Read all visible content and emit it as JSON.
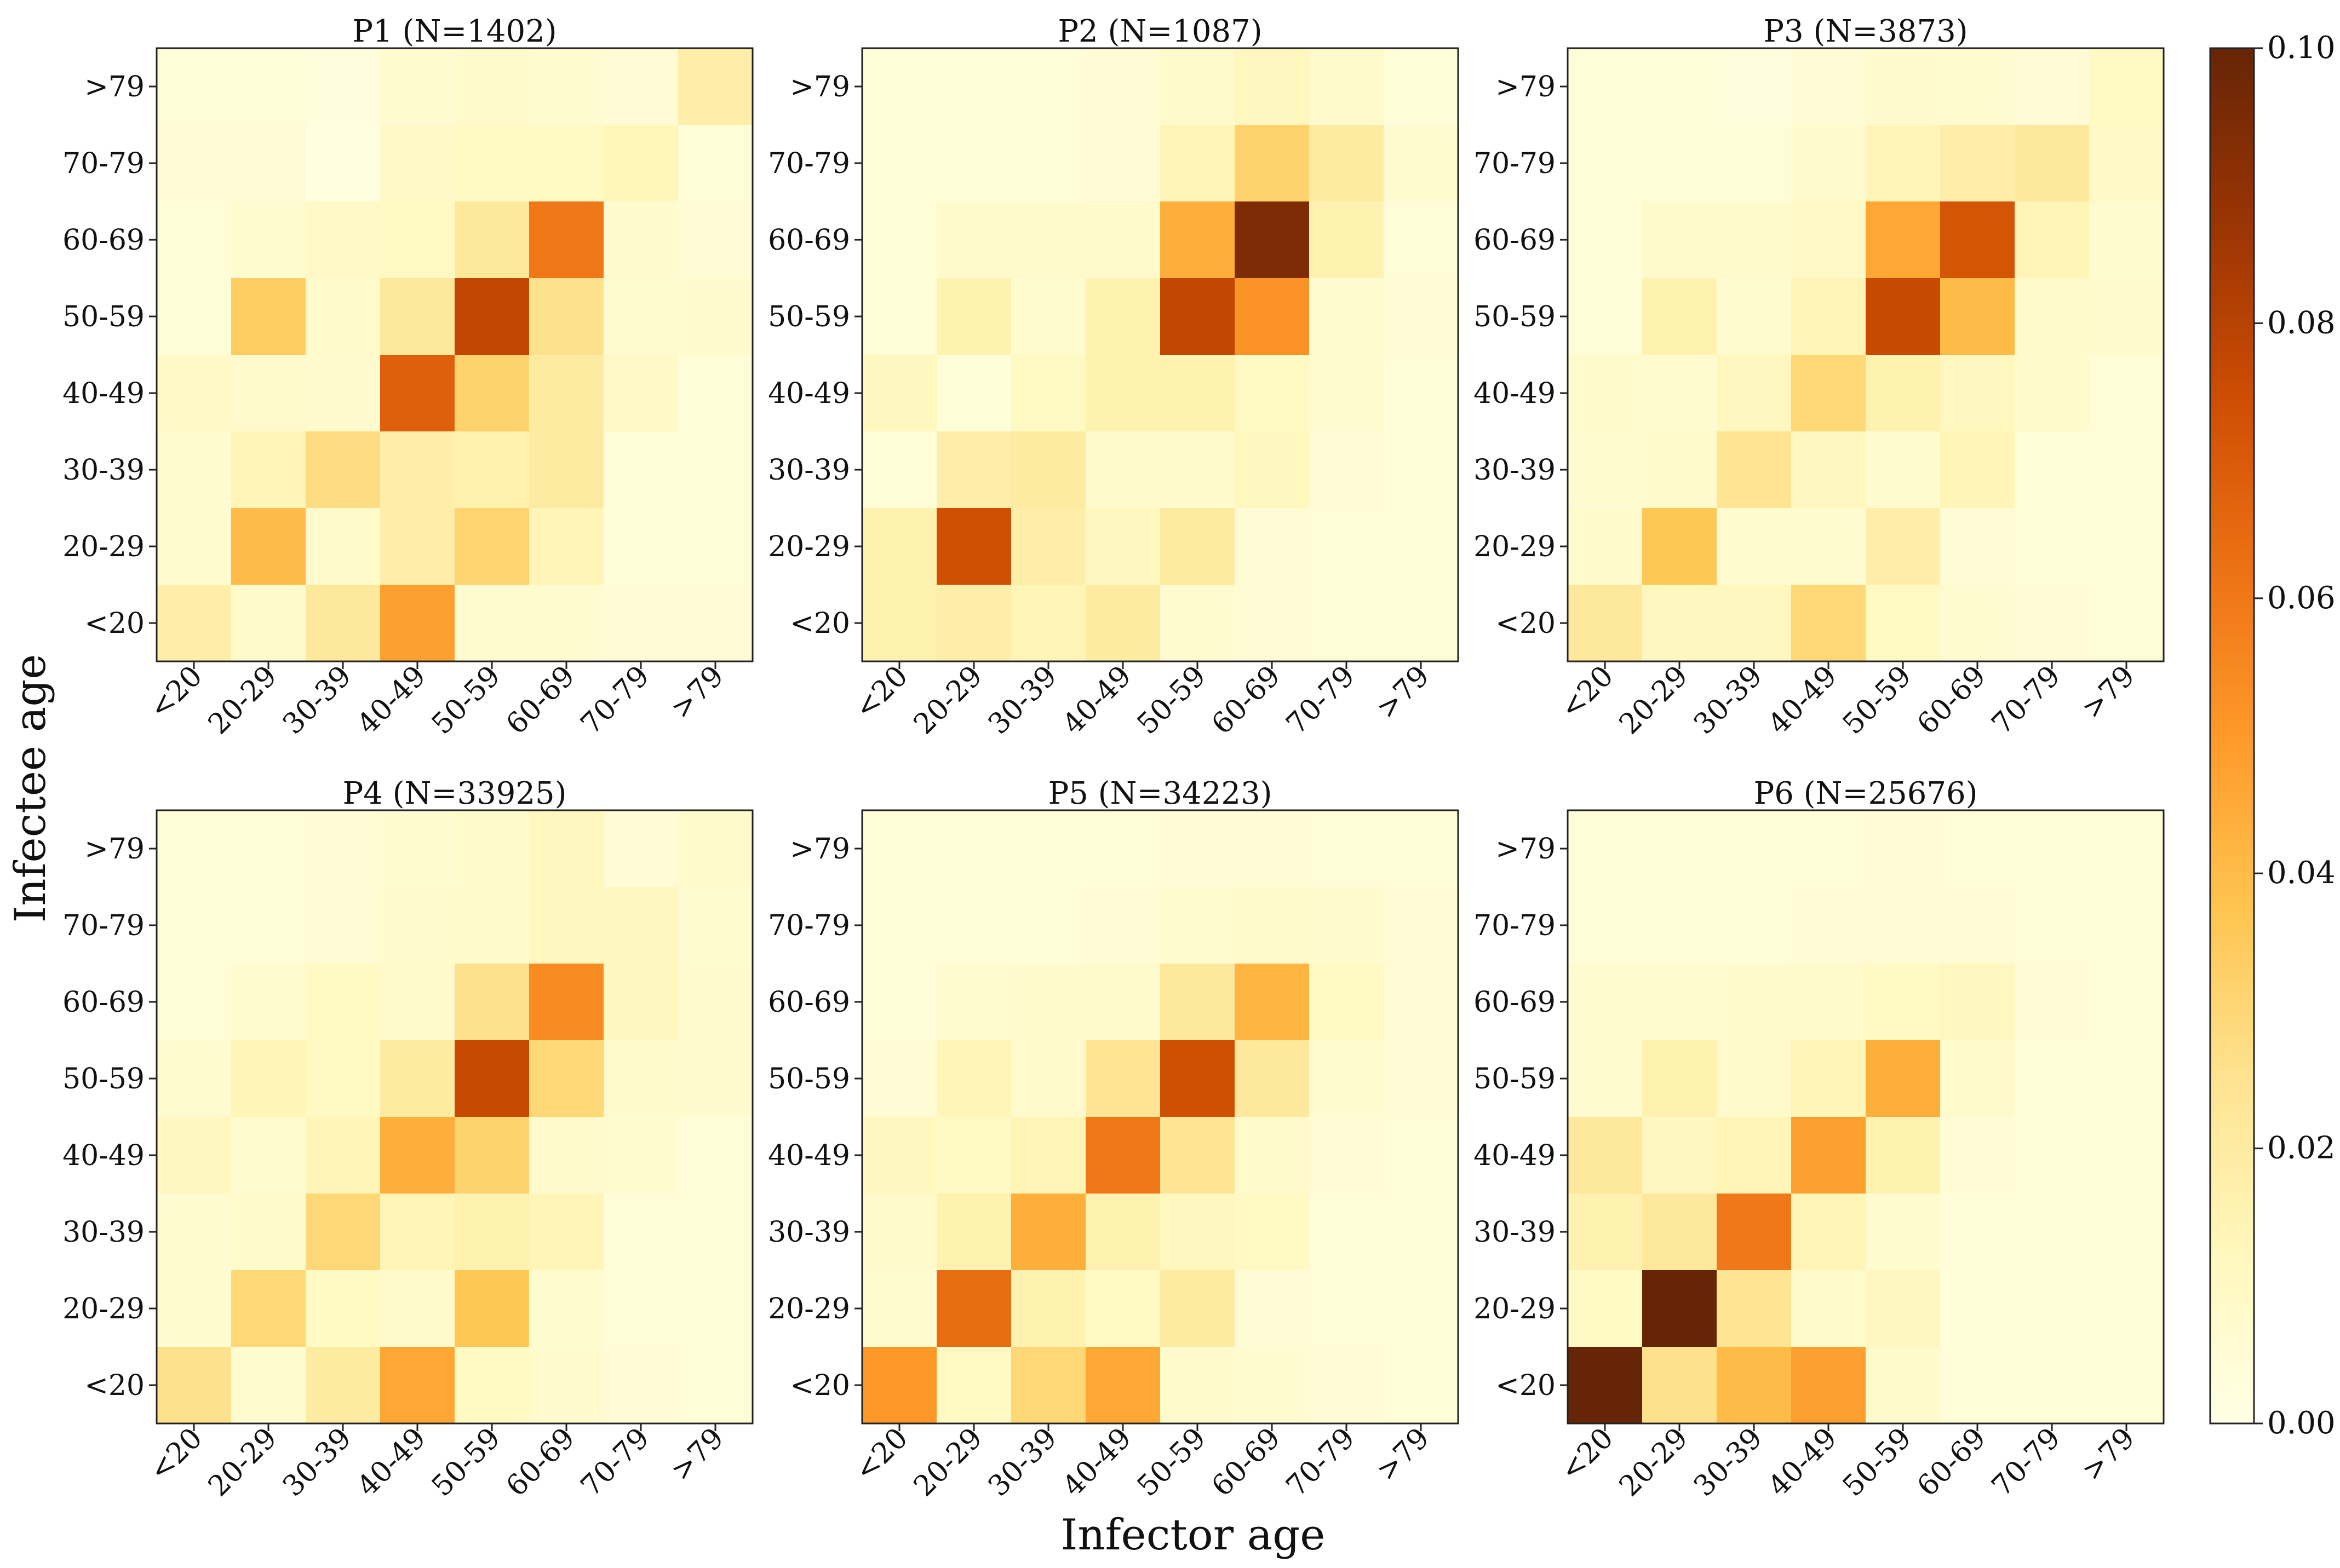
{
  "figure": {
    "xlabel": "Infector age",
    "ylabel": "Infectee age"
  },
  "colorbar": {
    "tick_labels": [
      "0.00",
      "0.02",
      "0.04",
      "0.06",
      "0.08",
      "0.10"
    ],
    "tick_values": [
      0.0,
      0.02,
      0.04,
      0.06,
      0.08,
      0.1
    ]
  },
  "chart_data": [
    {
      "type": "heatmap",
      "title": "P1 (N=1402)",
      "x_categories": [
        "<20",
        "20-29",
        "30-39",
        "40-49",
        "50-59",
        "60-69",
        "70-79",
        ">79"
      ],
      "y_categories": [
        ">79",
        "70-79",
        "60-69",
        "50-59",
        "40-49",
        "30-39",
        "20-29",
        "<20"
      ],
      "xlabel": "Infector age",
      "ylabel": "Infectee age",
      "vmin": 0.0,
      "vmax": 0.1,
      "values": [
        [
          0.004,
          0.004,
          0.003,
          0.006,
          0.008,
          0.006,
          0.005,
          0.018
        ],
        [
          0.005,
          0.005,
          0.002,
          0.009,
          0.01,
          0.01,
          0.013,
          0.004
        ],
        [
          0.004,
          0.006,
          0.009,
          0.01,
          0.022,
          0.06,
          0.007,
          0.005
        ],
        [
          0.004,
          0.034,
          0.008,
          0.022,
          0.078,
          0.026,
          0.006,
          0.007
        ],
        [
          0.009,
          0.008,
          0.007,
          0.068,
          0.032,
          0.02,
          0.009,
          0.004
        ],
        [
          0.006,
          0.014,
          0.028,
          0.018,
          0.017,
          0.02,
          0.004,
          0.004
        ],
        [
          0.006,
          0.04,
          0.008,
          0.018,
          0.031,
          0.014,
          0.004,
          0.004
        ],
        [
          0.018,
          0.008,
          0.022,
          0.048,
          0.006,
          0.006,
          0.005,
          0.005
        ]
      ]
    },
    {
      "type": "heatmap",
      "title": "P2 (N=1087)",
      "x_categories": [
        "<20",
        "20-29",
        "30-39",
        "40-49",
        "50-59",
        "60-69",
        "70-79",
        ">79"
      ],
      "y_categories": [
        ">79",
        "70-79",
        "60-69",
        "50-59",
        "40-49",
        "30-39",
        "20-29",
        "<20"
      ],
      "xlabel": "Infector age",
      "ylabel": "Infectee age",
      "vmin": 0.0,
      "vmax": 0.1,
      "values": [
        [
          0.004,
          0.004,
          0.004,
          0.005,
          0.008,
          0.012,
          0.008,
          0.004
        ],
        [
          0.004,
          0.004,
          0.004,
          0.005,
          0.014,
          0.032,
          0.02,
          0.006
        ],
        [
          0.004,
          0.008,
          0.008,
          0.008,
          0.044,
          0.094,
          0.016,
          0.004
        ],
        [
          0.004,
          0.016,
          0.006,
          0.016,
          0.078,
          0.052,
          0.006,
          0.005
        ],
        [
          0.012,
          0.004,
          0.01,
          0.016,
          0.016,
          0.01,
          0.006,
          0.004
        ],
        [
          0.004,
          0.018,
          0.02,
          0.008,
          0.008,
          0.012,
          0.005,
          0.004
        ],
        [
          0.016,
          0.074,
          0.018,
          0.012,
          0.02,
          0.005,
          0.004,
          0.004
        ],
        [
          0.016,
          0.018,
          0.014,
          0.02,
          0.006,
          0.005,
          0.004,
          0.004
        ]
      ]
    },
    {
      "type": "heatmap",
      "title": "P3 (N=3873)",
      "x_categories": [
        "<20",
        "20-29",
        "30-39",
        "40-49",
        "50-59",
        "60-69",
        "70-79",
        ">79"
      ],
      "y_categories": [
        ">79",
        "70-79",
        "60-69",
        "50-59",
        "40-49",
        "30-39",
        "20-29",
        "<20"
      ],
      "xlabel": "Infector age",
      "ylabel": "Infectee age",
      "vmin": 0.0,
      "vmax": 0.1,
      "values": [
        [
          0.004,
          0.004,
          0.003,
          0.005,
          0.007,
          0.006,
          0.005,
          0.01
        ],
        [
          0.004,
          0.004,
          0.004,
          0.007,
          0.014,
          0.018,
          0.022,
          0.009
        ],
        [
          0.004,
          0.008,
          0.008,
          0.009,
          0.046,
          0.072,
          0.014,
          0.006
        ],
        [
          0.004,
          0.016,
          0.006,
          0.014,
          0.076,
          0.04,
          0.008,
          0.007
        ],
        [
          0.008,
          0.006,
          0.012,
          0.03,
          0.016,
          0.012,
          0.008,
          0.004
        ],
        [
          0.006,
          0.008,
          0.024,
          0.012,
          0.006,
          0.014,
          0.004,
          0.004
        ],
        [
          0.008,
          0.036,
          0.006,
          0.006,
          0.018,
          0.005,
          0.004,
          0.004
        ],
        [
          0.022,
          0.012,
          0.012,
          0.03,
          0.01,
          0.006,
          0.005,
          0.004
        ]
      ]
    },
    {
      "type": "heatmap",
      "title": "P4 (N=33925)",
      "x_categories": [
        "<20",
        "20-29",
        "30-39",
        "40-49",
        "50-59",
        "60-69",
        "70-79",
        ">79"
      ],
      "y_categories": [
        ">79",
        "70-79",
        "60-69",
        "50-59",
        "40-49",
        "30-39",
        "20-29",
        "<20"
      ],
      "xlabel": "Infector age",
      "ylabel": "Infectee age",
      "vmin": 0.0,
      "vmax": 0.1,
      "values": [
        [
          0.004,
          0.004,
          0.005,
          0.006,
          0.008,
          0.012,
          0.005,
          0.008
        ],
        [
          0.004,
          0.004,
          0.005,
          0.007,
          0.008,
          0.012,
          0.012,
          0.006
        ],
        [
          0.004,
          0.006,
          0.01,
          0.008,
          0.026,
          0.054,
          0.012,
          0.007
        ],
        [
          0.006,
          0.014,
          0.01,
          0.02,
          0.076,
          0.03,
          0.008,
          0.007
        ],
        [
          0.012,
          0.006,
          0.014,
          0.044,
          0.032,
          0.008,
          0.006,
          0.004
        ],
        [
          0.006,
          0.008,
          0.03,
          0.014,
          0.016,
          0.014,
          0.004,
          0.004
        ],
        [
          0.006,
          0.03,
          0.01,
          0.008,
          0.036,
          0.006,
          0.004,
          0.004
        ],
        [
          0.026,
          0.006,
          0.02,
          0.046,
          0.01,
          0.007,
          0.005,
          0.004
        ]
      ]
    },
    {
      "type": "heatmap",
      "title": "P5 (N=34223)",
      "x_categories": [
        "<20",
        "20-29",
        "30-39",
        "40-49",
        "50-59",
        "60-69",
        "70-79",
        ">79"
      ],
      "y_categories": [
        ">79",
        "70-79",
        "60-69",
        "50-59",
        "40-49",
        "30-39",
        "20-29",
        "<20"
      ],
      "xlabel": "Infector age",
      "ylabel": "Infectee age",
      "vmin": 0.0,
      "vmax": 0.1,
      "values": [
        [
          0.004,
          0.004,
          0.004,
          0.004,
          0.005,
          0.005,
          0.004,
          0.004
        ],
        [
          0.004,
          0.004,
          0.004,
          0.005,
          0.006,
          0.008,
          0.007,
          0.005
        ],
        [
          0.004,
          0.006,
          0.008,
          0.008,
          0.022,
          0.042,
          0.01,
          0.005
        ],
        [
          0.005,
          0.014,
          0.008,
          0.024,
          0.074,
          0.022,
          0.006,
          0.005
        ],
        [
          0.012,
          0.01,
          0.014,
          0.06,
          0.024,
          0.008,
          0.005,
          0.004
        ],
        [
          0.008,
          0.016,
          0.044,
          0.016,
          0.012,
          0.01,
          0.004,
          0.004
        ],
        [
          0.006,
          0.064,
          0.016,
          0.01,
          0.02,
          0.005,
          0.004,
          0.004
        ],
        [
          0.05,
          0.01,
          0.03,
          0.046,
          0.008,
          0.006,
          0.005,
          0.004
        ]
      ]
    },
    {
      "type": "heatmap",
      "title": "P6 (N=25676)",
      "x_categories": [
        "<20",
        "20-29",
        "30-39",
        "40-49",
        "50-59",
        "60-69",
        "70-79",
        ">79"
      ],
      "y_categories": [
        ">79",
        "70-79",
        "60-69",
        "50-59",
        "40-49",
        "30-39",
        "20-29",
        "<20"
      ],
      "xlabel": "Infector age",
      "ylabel": "Infectee age",
      "vmin": 0.0,
      "vmax": 0.1,
      "values": [
        [
          0.004,
          0.004,
          0.004,
          0.004,
          0.005,
          0.004,
          0.004,
          0.004
        ],
        [
          0.004,
          0.004,
          0.004,
          0.005,
          0.005,
          0.005,
          0.004,
          0.004
        ],
        [
          0.006,
          0.006,
          0.008,
          0.008,
          0.01,
          0.012,
          0.005,
          0.004
        ],
        [
          0.006,
          0.016,
          0.008,
          0.014,
          0.044,
          0.008,
          0.004,
          0.004
        ],
        [
          0.022,
          0.012,
          0.014,
          0.048,
          0.016,
          0.005,
          0.004,
          0.004
        ],
        [
          0.016,
          0.022,
          0.06,
          0.014,
          0.006,
          0.004,
          0.004,
          0.004
        ],
        [
          0.01,
          0.1,
          0.024,
          0.008,
          0.012,
          0.004,
          0.004,
          0.004
        ],
        [
          0.1,
          0.026,
          0.04,
          0.048,
          0.008,
          0.004,
          0.004,
          0.004
        ]
      ]
    }
  ]
}
